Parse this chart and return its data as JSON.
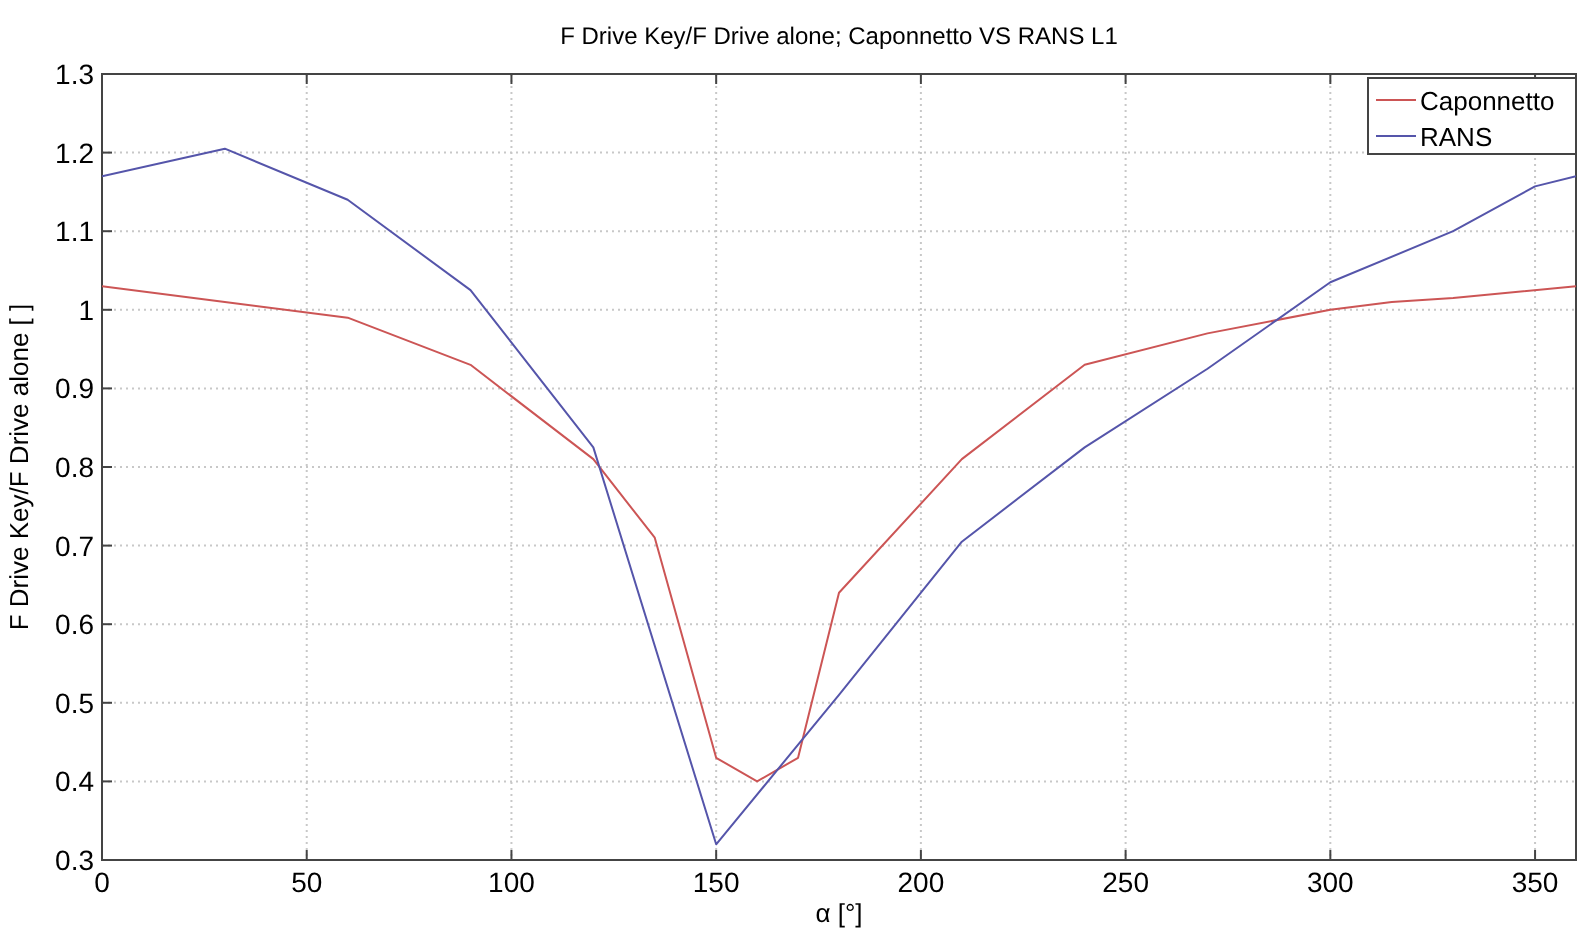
{
  "chart_data": {
    "type": "line",
    "title": "F Drive Key/F Drive alone; Caponnetto VS RANS L1",
    "xlabel": "α [°]",
    "ylabel": "F Drive Key/F Drive alone [ ]",
    "xlim": [
      0,
      360
    ],
    "xticks": [
      0,
      50,
      100,
      150,
      200,
      250,
      300,
      350
    ],
    "ylim": [
      0.3,
      1.3
    ],
    "yticks": [
      {
        "value": 0.3,
        "label": "0.3"
      },
      {
        "value": 0.4,
        "label": "0.4"
      },
      {
        "value": 0.5,
        "label": "0.5"
      },
      {
        "value": 0.6,
        "label": "0.6"
      },
      {
        "value": 0.7,
        "label": "0.7"
      },
      {
        "value": 0.8,
        "label": "0.8"
      },
      {
        "value": 0.9,
        "label": "0.9"
      },
      1,
      {
        "value": 1.1,
        "label": "1.1"
      },
      {
        "value": 1.2,
        "label": "1.2"
      },
      {
        "value": 1.3,
        "label": "1.3"
      }
    ],
    "grid": true,
    "legend": "top right",
    "line_style": "solid",
    "series": [
      {
        "name": "Caponnetto",
        "color": "#cc5555",
        "x": [
          0,
          30,
          60,
          90,
          120,
          135,
          150,
          160,
          170,
          180,
          210,
          240,
          270,
          300,
          315,
          330,
          360
        ],
        "values": [
          1.03,
          1.01,
          0.99,
          0.93,
          0.81,
          0.71,
          0.43,
          0.4,
          0.43,
          0.64,
          0.81,
          0.93,
          0.97,
          1.0,
          1.01,
          1.015,
          1.03
        ]
      },
      {
        "name": "RANS",
        "color": "#5555aa",
        "x": [
          0,
          30,
          60,
          90,
          120,
          150,
          180,
          210,
          240,
          270,
          300,
          330,
          350,
          360
        ],
        "values": [
          1.17,
          1.205,
          1.14,
          1.025,
          0.825,
          0.32,
          0.51,
          0.705,
          0.825,
          0.925,
          1.035,
          1.1,
          1.157,
          1.17
        ]
      }
    ]
  }
}
